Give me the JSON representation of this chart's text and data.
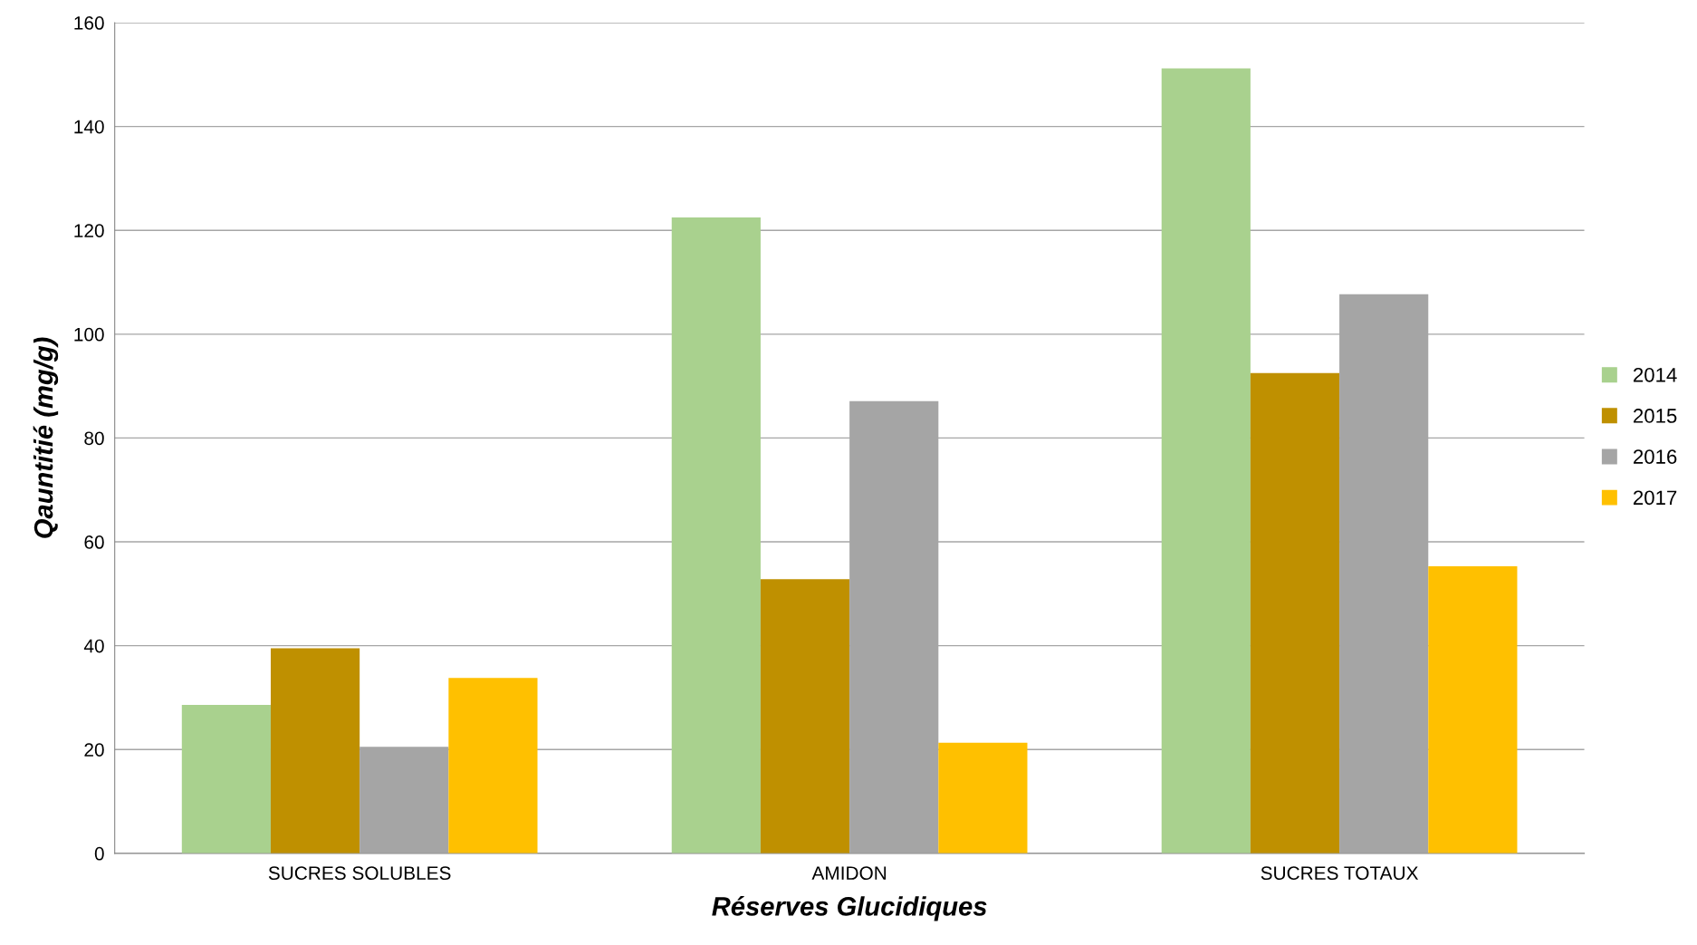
{
  "chart_data": {
    "type": "bar",
    "xlabel": "Réserves Glucidiques",
    "ylabel": "Qauntitié (mg/g)",
    "categories": [
      "SUCRES SOLUBLES",
      "AMIDON",
      "SUCRES TOTAUX"
    ],
    "series": [
      {
        "name": "2014",
        "color": "#a9d18e",
        "values": [
          28.6,
          122.5,
          151.2
        ]
      },
      {
        "name": "2015",
        "color": "#bf9000",
        "values": [
          39.5,
          52.8,
          92.5
        ]
      },
      {
        "name": "2016",
        "color": "#a5a5a5",
        "values": [
          20.5,
          87.1,
          107.7
        ]
      },
      {
        "name": "2017",
        "color": "#ffc000",
        "values": [
          33.8,
          21.3,
          55.3
        ]
      }
    ],
    "ylim": [
      0,
      160
    ],
    "yticks": [
      0,
      20,
      40,
      60,
      80,
      100,
      120,
      140,
      160
    ],
    "grid": "y",
    "legend": "right"
  }
}
